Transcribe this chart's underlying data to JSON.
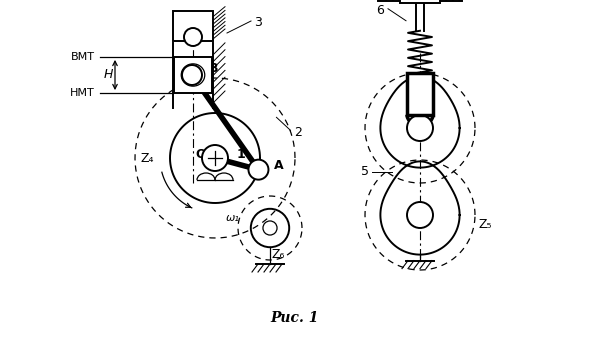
{
  "title": "Рис. 1",
  "bg_color": "#ffffff",
  "line_color": "#000000",
  "bmt_label": "ВМТ",
  "hmt_label": "НМТ",
  "H_label": "H"
}
